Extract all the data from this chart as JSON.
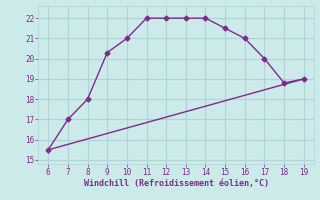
{
  "curve_x": [
    6,
    7,
    8,
    9,
    10,
    11,
    12,
    13,
    14,
    15,
    16,
    17,
    18,
    19
  ],
  "curve_y": [
    15.5,
    17.0,
    18.0,
    20.3,
    21.0,
    22.0,
    22.0,
    22.0,
    22.0,
    21.5,
    21.0,
    20.0,
    18.8,
    19.0
  ],
  "line_x": [
    6,
    19
  ],
  "line_y": [
    15.5,
    19.0
  ],
  "line_color": "#7B2D8B",
  "curve_color": "#7B2D8B",
  "bg_color": "#cceaea",
  "grid_color": "#b0d4d4",
  "xlabel": "Windchill (Refroidissement éolien,°C)",
  "xlabel_color": "#7B2D8B",
  "tick_color": "#7B2D8B",
  "xlim": [
    5.5,
    19.5
  ],
  "ylim": [
    14.8,
    22.6
  ],
  "xticks": [
    6,
    7,
    8,
    9,
    10,
    11,
    12,
    13,
    14,
    15,
    16,
    17,
    18,
    19
  ],
  "yticks": [
    15,
    16,
    17,
    18,
    19,
    20,
    21,
    22
  ],
  "marker": "D",
  "marker_size": 2.5,
  "line_width": 1.0
}
